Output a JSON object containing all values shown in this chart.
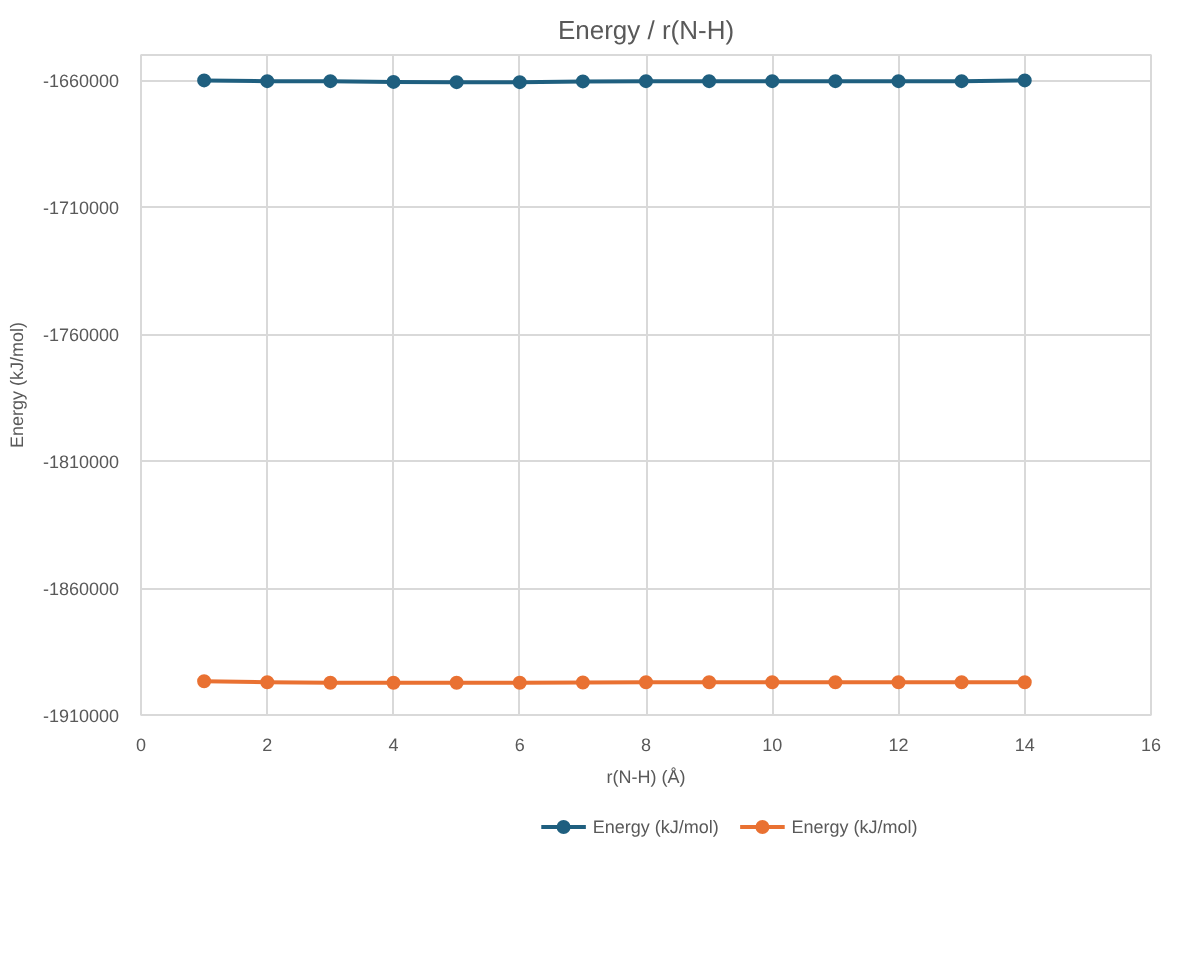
{
  "chart_data": {
    "type": "line",
    "title": "Energy / r(N-H)",
    "xlabel": "r(N-H) (Å)",
    "ylabel": "Energy (kJ/mol)",
    "x": [
      1,
      2,
      3,
      4,
      5,
      6,
      7,
      8,
      9,
      10,
      11,
      12,
      13,
      14
    ],
    "series": [
      {
        "name": "Energy (kJ/mol)",
        "color": "#1f5f7f",
        "values": [
          -1660000,
          -1660300,
          -1660300,
          -1660600,
          -1660700,
          -1660700,
          -1660400,
          -1660300,
          -1660300,
          -1660300,
          -1660300,
          -1660300,
          -1660300,
          -1660000
        ]
      },
      {
        "name": "Energy (kJ/mol)",
        "color": "#e97132",
        "values": [
          -1896700,
          -1897100,
          -1897300,
          -1897300,
          -1897300,
          -1897300,
          -1897200,
          -1897100,
          -1897100,
          -1897100,
          -1897100,
          -1897100,
          -1897100,
          -1897100
        ]
      }
    ],
    "xlim": [
      0,
      16
    ],
    "xticks": [
      0,
      2,
      4,
      6,
      8,
      10,
      12,
      14,
      16
    ],
    "ylim": [
      -1910000,
      -1650000
    ],
    "yticks": [
      -1910000,
      -1860000,
      -1810000,
      -1760000,
      -1710000,
      -1660000
    ],
    "grid": true,
    "legend": "bottom",
    "marker": "circle",
    "line_style": "solid"
  }
}
